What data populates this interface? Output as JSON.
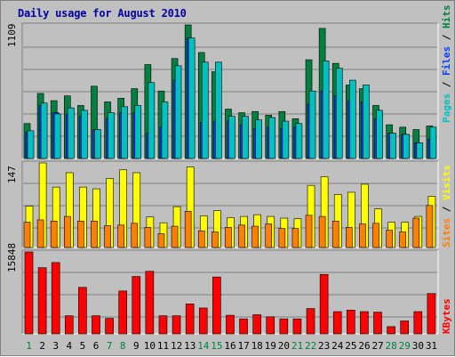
{
  "title": "Daily usage for August 2010",
  "colors": {
    "background": "#c0c0c0",
    "title": "#0000a0",
    "pages": "#00c0c0",
    "files": "#0040ff",
    "hits": "#008040",
    "sites": "#ff8000",
    "visits": "#ffff00",
    "kbytes": "#ff0000",
    "weekend_day": "#008040",
    "weekday": "#000000"
  },
  "chart_data": [
    {
      "type": "bar",
      "name": "hits-files-pages",
      "categories": [
        "1",
        "2",
        "3",
        "4",
        "5",
        "6",
        "7",
        "8",
        "9",
        "10",
        "11",
        "12",
        "13",
        "14",
        "15",
        "16",
        "17",
        "18",
        "19",
        "20",
        "21",
        "22",
        "23",
        "24",
        "25",
        "26",
        "27",
        "28",
        "29",
        "30",
        "31"
      ],
      "ymax_label": "1109",
      "ylim": [
        0,
        1109
      ],
      "series": [
        {
          "name": "Hits",
          "values": [
            290,
            540,
            480,
            520,
            440,
            600,
            470,
            500,
            580,
            780,
            560,
            830,
            1109,
            880,
            720,
            410,
            380,
            390,
            360,
            390,
            330,
            820,
            1080,
            790,
            610,
            580,
            440,
            280,
            260,
            240,
            270
          ]
        },
        {
          "name": "Files",
          "values": [
            220,
            440,
            380,
            370,
            350,
            240,
            330,
            380,
            380,
            210,
            260,
            650,
            1000,
            300,
            310,
            310,
            280,
            250,
            260,
            250,
            260,
            450,
            560,
            520,
            480,
            470,
            330,
            210,
            200,
            130,
            160
          ]
        },
        {
          "name": "Pages",
          "values": [
            230,
            460,
            370,
            420,
            400,
            240,
            380,
            430,
            440,
            630,
            470,
            770,
            1000,
            800,
            800,
            350,
            350,
            320,
            340,
            310,
            290,
            560,
            810,
            750,
            650,
            610,
            400,
            210,
            200,
            130,
            260
          ]
        }
      ],
      "legend": [
        "Pages",
        "Files",
        "Hits"
      ]
    },
    {
      "type": "bar",
      "name": "sites-visits",
      "categories": [
        "1",
        "2",
        "3",
        "4",
        "5",
        "6",
        "7",
        "8",
        "9",
        "10",
        "11",
        "12",
        "13",
        "14",
        "15",
        "16",
        "17",
        "18",
        "19",
        "20",
        "21",
        "22",
        "23",
        "24",
        "25",
        "26",
        "27",
        "28",
        "29",
        "30",
        "31"
      ],
      "ymax_label": "147",
      "ylim": [
        0,
        147
      ],
      "series": [
        {
          "name": "Visits",
          "values": [
            72,
            147,
            105,
            130,
            105,
            102,
            120,
            135,
            130,
            53,
            43,
            71,
            140,
            55,
            64,
            52,
            54,
            57,
            54,
            51,
            50,
            108,
            123,
            92,
            96,
            110,
            67,
            44,
            44,
            54,
            89
          ]
        },
        {
          "name": "Sites",
          "values": [
            44,
            48,
            46,
            54,
            46,
            46,
            38,
            39,
            42,
            35,
            24,
            37,
            63,
            29,
            27,
            35,
            39,
            37,
            41,
            33,
            33,
            56,
            54,
            46,
            35,
            41,
            42,
            30,
            27,
            51,
            73
          ]
        }
      ],
      "legend": [
        "Sites",
        "Visits"
      ]
    },
    {
      "type": "bar",
      "name": "kbytes",
      "categories": [
        "1",
        "2",
        "3",
        "4",
        "5",
        "6",
        "7",
        "8",
        "9",
        "10",
        "11",
        "12",
        "13",
        "14",
        "15",
        "16",
        "17",
        "18",
        "19",
        "20",
        "21",
        "22",
        "23",
        "24",
        "25",
        "26",
        "27",
        "28",
        "29",
        "30",
        "31"
      ],
      "ymax_label": "15848",
      "ylim": [
        0,
        15848
      ],
      "series": [
        {
          "name": "KBytes",
          "values": [
            15848,
            12800,
            13800,
            3500,
            9000,
            3500,
            3000,
            8300,
            11100,
            12100,
            3500,
            3500,
            5800,
            5000,
            11000,
            3600,
            2900,
            3700,
            3300,
            2900,
            2900,
            4900,
            11500,
            4300,
            4600,
            4300,
            4200,
            1400,
            2500,
            4300,
            7800
          ]
        }
      ],
      "legend": [
        "KBytes"
      ]
    }
  ],
  "days": [
    {
      "label": "1",
      "weekend": true
    },
    {
      "label": "2",
      "weekend": false
    },
    {
      "label": "3",
      "weekend": false
    },
    {
      "label": "4",
      "weekend": false
    },
    {
      "label": "5",
      "weekend": false
    },
    {
      "label": "6",
      "weekend": false
    },
    {
      "label": "7",
      "weekend": true
    },
    {
      "label": "8",
      "weekend": true
    },
    {
      "label": "9",
      "weekend": false
    },
    {
      "label": "10",
      "weekend": false
    },
    {
      "label": "11",
      "weekend": false
    },
    {
      "label": "12",
      "weekend": false
    },
    {
      "label": "13",
      "weekend": false
    },
    {
      "label": "14",
      "weekend": true
    },
    {
      "label": "15",
      "weekend": true
    },
    {
      "label": "16",
      "weekend": false
    },
    {
      "label": "17",
      "weekend": false
    },
    {
      "label": "18",
      "weekend": false
    },
    {
      "label": "19",
      "weekend": false
    },
    {
      "label": "20",
      "weekend": false
    },
    {
      "label": "21",
      "weekend": true
    },
    {
      "label": "22",
      "weekend": true
    },
    {
      "label": "23",
      "weekend": false
    },
    {
      "label": "24",
      "weekend": false
    },
    {
      "label": "25",
      "weekend": false
    },
    {
      "label": "26",
      "weekend": false
    },
    {
      "label": "27",
      "weekend": false
    },
    {
      "label": "28",
      "weekend": true
    },
    {
      "label": "29",
      "weekend": true
    },
    {
      "label": "30",
      "weekend": false
    },
    {
      "label": "31",
      "weekend": false
    }
  ]
}
